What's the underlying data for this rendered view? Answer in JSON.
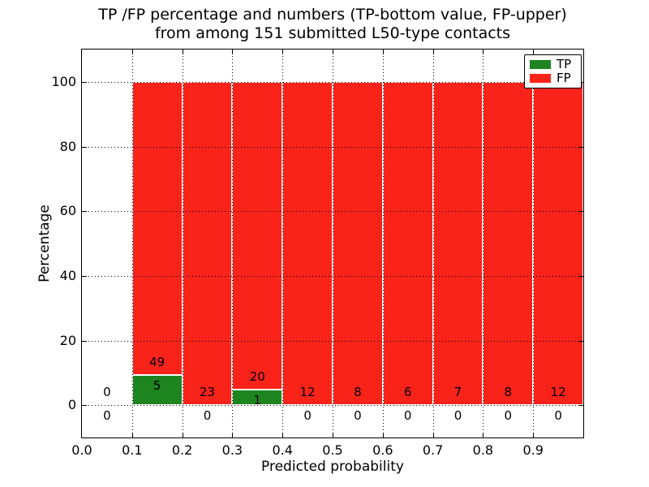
{
  "window": {
    "background": "#ffffff"
  },
  "chart_data": {
    "type": "bar",
    "stacked": true,
    "title": "TP /FP percentage and numbers (TP-bottom value, FP-upper) from among 151 submitted L50-type contacts",
    "title_lines": [
      "TP /FP percentage and numbers (TP-bottom value, FP-upper)",
      "from among 151 submitted L50-type contacts"
    ],
    "xlabel": "Predicted probability",
    "ylabel": "Percentage",
    "xlim": [
      0.0,
      1.0
    ],
    "ylim": [
      -10,
      110
    ],
    "xticks": [
      0.0,
      0.1,
      0.2,
      0.3,
      0.4,
      0.5,
      0.6,
      0.7,
      0.8,
      0.9
    ],
    "yticks": [
      0,
      20,
      40,
      60,
      80,
      100
    ],
    "grid": "dotted, drawn over bars",
    "total_contacts": 151,
    "bins": [
      {
        "range": [
          0.0,
          0.1
        ],
        "tp": 0,
        "fp": 0
      },
      {
        "range": [
          0.1,
          0.2
        ],
        "tp": 5,
        "fp": 49
      },
      {
        "range": [
          0.2,
          0.3
        ],
        "tp": 0,
        "fp": 23
      },
      {
        "range": [
          0.3,
          0.4
        ],
        "tp": 1,
        "fp": 20
      },
      {
        "range": [
          0.4,
          0.5
        ],
        "tp": 0,
        "fp": 12
      },
      {
        "range": [
          0.5,
          0.6
        ],
        "tp": 0,
        "fp": 8
      },
      {
        "range": [
          0.6,
          0.7
        ],
        "tp": 0,
        "fp": 6
      },
      {
        "range": [
          0.7,
          0.8
        ],
        "tp": 0,
        "fp": 7
      },
      {
        "range": [
          0.8,
          0.9
        ],
        "tp": 0,
        "fp": 8
      },
      {
        "range": [
          0.9,
          1.0
        ],
        "tp": 0,
        "fp": 12
      }
    ],
    "colors": {
      "tp": "#1e8420",
      "fp": "#f9231a"
    },
    "legend": {
      "location": "upper right",
      "entries": [
        {
          "label": "TP",
          "series": "tp"
        },
        {
          "label": "FP",
          "series": "fp"
        }
      ]
    }
  }
}
